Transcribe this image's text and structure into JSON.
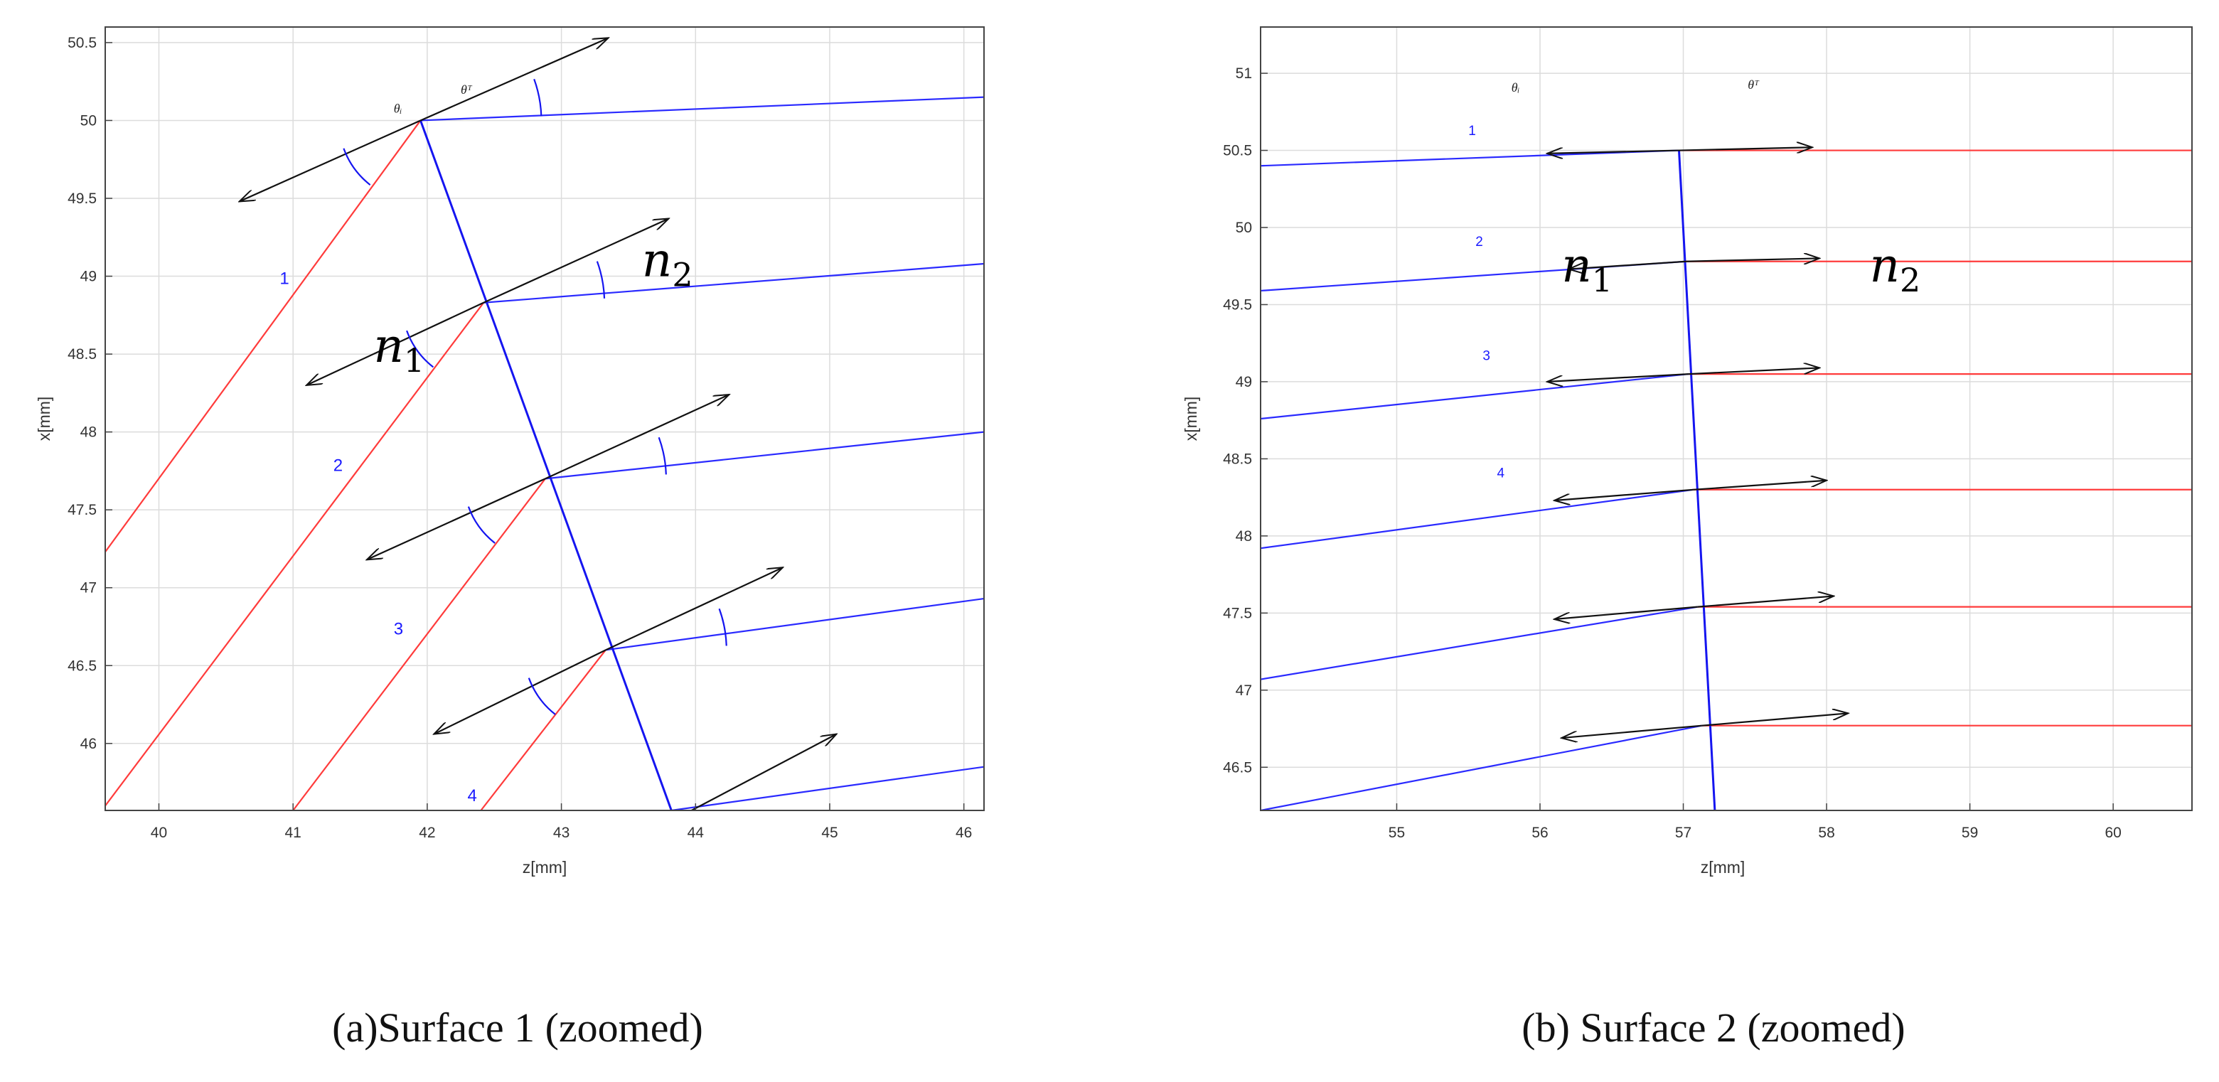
{
  "panels": [
    {
      "id": "a",
      "caption": "(a)Surface 1 (zoomed)",
      "xlabel": "z[mm]",
      "ylabel": "x[mm]",
      "xrange": [
        39.6,
        46.15
      ],
      "yrange": [
        45.57,
        50.6
      ],
      "xticks": [
        "40",
        "41",
        "42",
        "43",
        "44",
        "45",
        "46"
      ],
      "yticks": [
        "46",
        "46.5",
        "47",
        "47.5",
        "48",
        "48.5",
        "49",
        "49.5",
        "50",
        "50.5"
      ],
      "surface": [
        [
          41.95,
          50.0
        ],
        [
          43.82,
          45.57
        ]
      ],
      "incident_rays": [
        [
          [
            41.95,
            50.0
          ],
          [
            39.6,
            47.23
          ]
        ],
        [
          [
            42.42,
            48.83
          ],
          [
            39.6,
            45.6
          ]
        ],
        [
          [
            42.88,
            47.7
          ],
          [
            41.0,
            45.57
          ]
        ],
        [
          [
            43.33,
            46.6
          ],
          [
            42.4,
            45.57
          ]
        ]
      ],
      "refracted_rays": [
        [
          [
            41.95,
            50.0
          ],
          [
            46.15,
            50.15
          ]
        ],
        [
          [
            42.42,
            48.83
          ],
          [
            46.15,
            49.08
          ]
        ],
        [
          [
            42.88,
            47.7
          ],
          [
            46.15,
            48.0
          ]
        ],
        [
          [
            43.33,
            46.6
          ],
          [
            46.15,
            46.93
          ]
        ],
        [
          [
            43.82,
            45.57
          ],
          [
            46.15,
            45.85
          ]
        ]
      ],
      "normal_arrows": [
        {
          "from": [
            41.95,
            50.0
          ],
          "to": [
            40.6,
            49.48
          ]
        },
        {
          "from": [
            41.95,
            50.0
          ],
          "to": [
            43.35,
            50.53
          ]
        },
        {
          "from": [
            42.42,
            48.83
          ],
          "to": [
            41.1,
            48.3
          ]
        },
        {
          "from": [
            42.42,
            48.83
          ],
          "to": [
            43.8,
            49.37
          ]
        },
        {
          "from": [
            42.88,
            47.7
          ],
          "to": [
            41.55,
            47.18
          ]
        },
        {
          "from": [
            42.88,
            47.7
          ],
          "to": [
            44.25,
            48.24
          ]
        },
        {
          "from": [
            43.33,
            46.6
          ],
          "to": [
            42.05,
            46.06
          ]
        },
        {
          "from": [
            43.33,
            46.6
          ],
          "to": [
            44.65,
            47.13
          ]
        },
        {
          "from": [
            43.97,
            45.57
          ],
          "to": [
            45.05,
            46.06
          ]
        }
      ],
      "ray_labels": [
        {
          "text": "1",
          "z": 40.9,
          "x": 48.95
        },
        {
          "text": "2",
          "z": 41.3,
          "x": 47.75
        },
        {
          "text": "3",
          "z": 41.75,
          "x": 46.7
        },
        {
          "text": "4",
          "z": 42.3,
          "x": 45.63
        }
      ],
      "theta_labels": [
        {
          "text": "θᵢ",
          "z": 41.75,
          "x": 50.05
        },
        {
          "text": "θᵀ",
          "z": 42.25,
          "x": 50.17
        }
      ],
      "n_labels": [
        {
          "base": "n",
          "sub": "1",
          "z": 41.6,
          "x": 48.45
        },
        {
          "base": "n",
          "sub": "2",
          "z": 43.6,
          "x": 49.0
        }
      ]
    },
    {
      "id": "b",
      "caption": "(b) Surface 2 (zoomed)",
      "xlabel": "z[mm]",
      "ylabel": "x[mm]",
      "xrange": [
        54.05,
        60.55
      ],
      "yrange": [
        46.22,
        51.3
      ],
      "xticks": [
        "55",
        "56",
        "57",
        "58",
        "59",
        "60"
      ],
      "yticks": [
        "46.5",
        "47",
        "47.5",
        "48",
        "48.5",
        "49",
        "49.5",
        "50",
        "50.5",
        "51"
      ],
      "surface": [
        [
          56.97,
          50.5
        ],
        [
          57.22,
          46.22
        ]
      ],
      "incident_rays": [
        [
          [
            56.97,
            50.5
          ],
          [
            54.05,
            50.4
          ]
        ],
        [
          [
            57.02,
            49.78
          ],
          [
            54.05,
            49.59
          ]
        ],
        [
          [
            57.04,
            49.05
          ],
          [
            54.05,
            48.76
          ]
        ],
        [
          [
            57.07,
            48.3
          ],
          [
            54.05,
            47.92
          ]
        ],
        [
          [
            57.1,
            47.54
          ],
          [
            54.05,
            47.07
          ]
        ],
        [
          [
            57.13,
            46.77
          ],
          [
            54.05,
            46.22
          ]
        ]
      ],
      "refracted_rays": [
        [
          [
            56.97,
            50.5
          ],
          [
            60.55,
            50.5
          ]
        ],
        [
          [
            57.02,
            49.78
          ],
          [
            60.55,
            49.78
          ]
        ],
        [
          [
            57.04,
            49.05
          ],
          [
            60.55,
            49.05
          ]
        ],
        [
          [
            57.07,
            48.3
          ],
          [
            60.55,
            48.3
          ]
        ],
        [
          [
            57.1,
            47.54
          ],
          [
            60.55,
            47.54
          ]
        ],
        [
          [
            57.13,
            46.77
          ],
          [
            60.55,
            46.77
          ]
        ]
      ],
      "normal_arrows": [
        {
          "from": [
            56.97,
            50.5
          ],
          "to": [
            56.05,
            50.48
          ]
        },
        {
          "from": [
            56.97,
            50.5
          ],
          "to": [
            57.9,
            50.52
          ]
        },
        {
          "from": [
            57.02,
            49.78
          ],
          "to": [
            56.2,
            49.73
          ]
        },
        {
          "from": [
            57.02,
            49.78
          ],
          "to": [
            57.95,
            49.8
          ]
        },
        {
          "from": [
            57.04,
            49.05
          ],
          "to": [
            56.05,
            49.0
          ]
        },
        {
          "from": [
            57.04,
            49.05
          ],
          "to": [
            57.95,
            49.09
          ]
        },
        {
          "from": [
            57.07,
            48.3
          ],
          "to": [
            56.1,
            48.23
          ]
        },
        {
          "from": [
            57.07,
            48.3
          ],
          "to": [
            58.0,
            48.36
          ]
        },
        {
          "from": [
            57.1,
            47.54
          ],
          "to": [
            56.1,
            47.46
          ]
        },
        {
          "from": [
            57.1,
            47.54
          ],
          "to": [
            58.05,
            47.61
          ]
        },
        {
          "from": [
            57.13,
            46.77
          ],
          "to": [
            56.15,
            46.69
          ]
        },
        {
          "from": [
            57.13,
            46.77
          ],
          "to": [
            58.15,
            46.85
          ]
        }
      ],
      "ray_labels": [
        {
          "text": "1",
          "z": 55.5,
          "x": 50.6
        },
        {
          "text": "2",
          "z": 55.55,
          "x": 49.88
        },
        {
          "text": "3",
          "z": 55.6,
          "x": 49.14
        },
        {
          "text": "4",
          "z": 55.7,
          "x": 48.38
        }
      ],
      "theta_labels": [
        {
          "text": "θᵢ",
          "z": 55.8,
          "x": 50.88
        },
        {
          "text": "θᵀ",
          "z": 57.45,
          "x": 50.9
        }
      ],
      "n_labels": [
        {
          "base": "n",
          "sub": "1",
          "z": 56.15,
          "x": 49.65
        },
        {
          "base": "n",
          "sub": "2",
          "z": 58.3,
          "x": 49.65
        }
      ]
    }
  ]
}
